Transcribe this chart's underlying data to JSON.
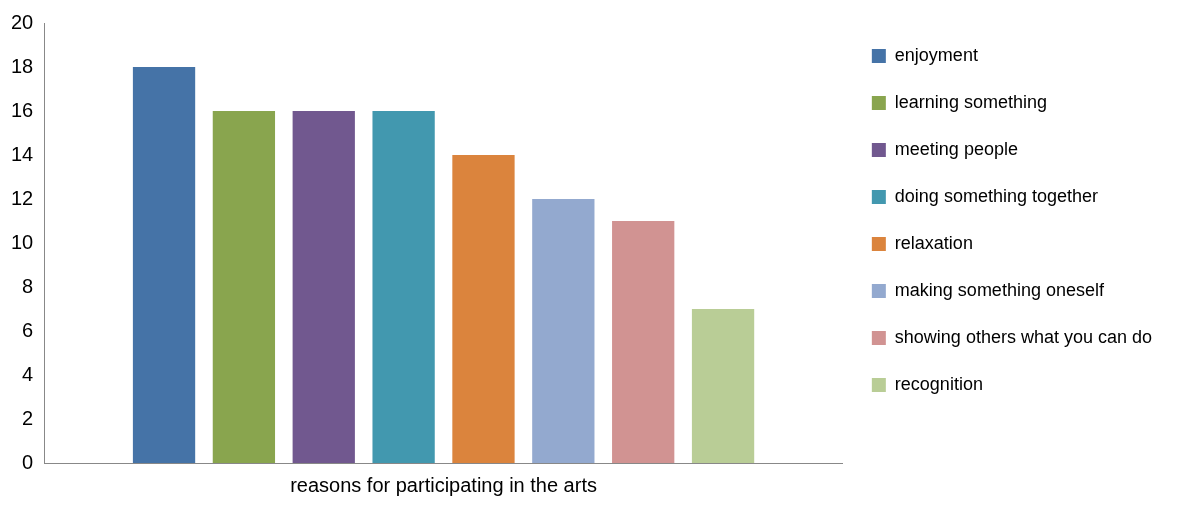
{
  "chart_data": {
    "type": "bar",
    "categories": [
      "reasons for participating in the arts"
    ],
    "series": [
      {
        "name": "enjoyment",
        "color": "#4573a7",
        "values": [
          18
        ]
      },
      {
        "name": "learning something",
        "color": "#89a54e",
        "values": [
          16
        ]
      },
      {
        "name": "meeting people",
        "color": "#71588f",
        "values": [
          16
        ]
      },
      {
        "name": "doing something together",
        "color": "#4298af",
        "values": [
          16
        ]
      },
      {
        "name": "relaxation",
        "color": "#db843d",
        "values": [
          14
        ]
      },
      {
        "name": "making something oneself",
        "color": "#93a9cf",
        "values": [
          12
        ]
      },
      {
        "name": "showing others what you can do",
        "color": "#d19392",
        "values": [
          11
        ]
      },
      {
        "name": "recognition",
        "color": "#b9cd96",
        "values": [
          7
        ]
      }
    ],
    "ylim": [
      0,
      20
    ],
    "yticks": [
      0,
      2,
      4,
      6,
      8,
      10,
      12,
      14,
      16,
      18,
      20
    ],
    "grid": false,
    "legend": "right"
  }
}
